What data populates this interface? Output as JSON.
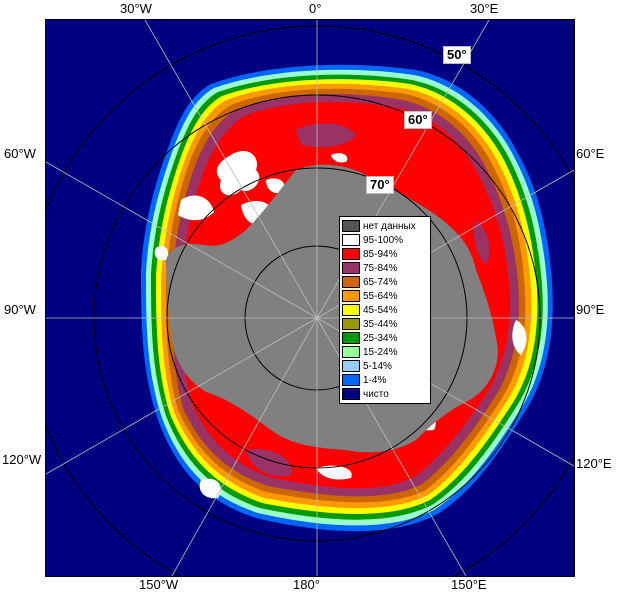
{
  "map": {
    "longitude_labels": {
      "lon_30w": "30°W",
      "lon_0": "0°",
      "lon_30e": "30°E",
      "lon_60w": "60°W",
      "lon_60e": "60°E",
      "lon_90w": "90°W",
      "lon_90e": "90°E",
      "lon_120w": "120°W",
      "lon_120e": "120°E",
      "lon_150w": "150°W",
      "lon_180": "180°",
      "lon_150e": "150°E"
    },
    "latitude_labels": {
      "lat_50": "50°",
      "lat_60": "60°",
      "lat_70": "70°"
    },
    "colors": {
      "ocean_open": "#000080",
      "land": "#808080",
      "no_data": "#555555",
      "conc_95_100": "#ffffff",
      "conc_85_94": "#ff0000",
      "conc_75_84": "#993366",
      "conc_65_74": "#cc6600",
      "conc_55_64": "#ff9900",
      "conc_45_54": "#ffff00",
      "conc_35_44": "#999900",
      "conc_25_34": "#009900",
      "conc_15_24": "#99ff99",
      "conc_5_14": "#99ccff",
      "conc_1_4": "#0066ff",
      "conc_clear": "#000080"
    }
  },
  "legend": {
    "items": [
      {
        "label": "нет данных",
        "color": "#555555"
      },
      {
        "label": "95-100%",
        "color": "#ffffff"
      },
      {
        "label": "85-94%",
        "color": "#ff0000"
      },
      {
        "label": "75-84%",
        "color": "#993366"
      },
      {
        "label": "65-74%",
        "color": "#cc6600"
      },
      {
        "label": "55-64%",
        "color": "#ff9900"
      },
      {
        "label": "45-54%",
        "color": "#ffff00"
      },
      {
        "label": "35-44%",
        "color": "#999900"
      },
      {
        "label": "25-34%",
        "color": "#009900"
      },
      {
        "label": "15-24%",
        "color": "#99ff99"
      },
      {
        "label": "5-14%",
        "color": "#99ccff"
      },
      {
        "label": "1-4%",
        "color": "#0066ff"
      },
      {
        "label": "чисто",
        "color": "#000080"
      }
    ]
  }
}
